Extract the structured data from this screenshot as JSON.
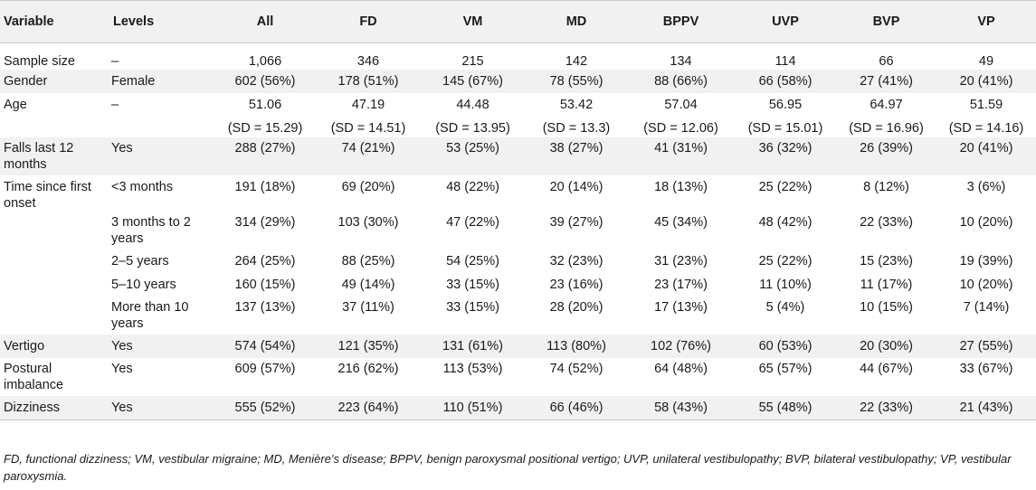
{
  "header": {
    "variable": "Variable",
    "levels": "Levels",
    "groups": [
      "All",
      "FD",
      "VM",
      "MD",
      "BPPV",
      "UVP",
      "BVP",
      "VP"
    ]
  },
  "rows": [
    {
      "variable": "Sample size",
      "level": "–",
      "values": [
        "1,066",
        "346",
        "215",
        "142",
        "134",
        "114",
        "66",
        "49"
      ]
    },
    {
      "variable": "Gender",
      "level": "Female",
      "values": [
        "602 (56%)",
        "178 (51%)",
        "145 (67%)",
        "78 (55%)",
        "88 (66%)",
        "66 (58%)",
        "27 (41%)",
        "20 (41%)"
      ]
    },
    {
      "variable": "Age",
      "level": "–",
      "values": [
        "51.06",
        "47.19",
        "44.48",
        "53.42",
        "57.04",
        "56.95",
        "64.97",
        "51.59"
      ]
    },
    {
      "variable": "",
      "level": "",
      "values": [
        "(SD = 15.29)",
        "(SD = 14.51)",
        "(SD = 13.95)",
        "(SD = 13.3)",
        "(SD = 12.06)",
        "(SD = 15.01)",
        "(SD = 16.96)",
        "(SD = 14.16)"
      ]
    },
    {
      "variable": "Falls last 12 months",
      "level": "Yes",
      "values": [
        "288 (27%)",
        "74 (21%)",
        "53 (25%)",
        "38 (27%)",
        "41 (31%)",
        "36 (32%)",
        "26 (39%)",
        "20 (41%)"
      ]
    },
    {
      "variable": "Time since first onset",
      "level": "<3 months",
      "values": [
        "191 (18%)",
        "69 (20%)",
        "48 (22%)",
        "20 (14%)",
        "18 (13%)",
        "25 (22%)",
        "8 (12%)",
        "3 (6%)"
      ]
    },
    {
      "variable": "",
      "level": "3 months to 2 years",
      "values": [
        "314 (29%)",
        "103 (30%)",
        "47 (22%)",
        "39 (27%)",
        "45 (34%)",
        "48 (42%)",
        "22 (33%)",
        "10 (20%)"
      ]
    },
    {
      "variable": "",
      "level": "2–5 years",
      "values": [
        "264 (25%)",
        "88 (25%)",
        "54 (25%)",
        "32 (23%)",
        "31 (23%)",
        "25 (22%)",
        "15 (23%)",
        "19 (39%)"
      ]
    },
    {
      "variable": "",
      "level": "5–10 years",
      "values": [
        "160 (15%)",
        "49 (14%)",
        "33 (15%)",
        "23 (16%)",
        "23 (17%)",
        "11 (10%)",
        "11 (17%)",
        "10 (20%)"
      ]
    },
    {
      "variable": "",
      "level": "More than 10 years",
      "values": [
        "137 (13%)",
        "37 (11%)",
        "33 (15%)",
        "28 (20%)",
        "17 (13%)",
        "5 (4%)",
        "10 (15%)",
        "7 (14%)"
      ]
    },
    {
      "variable": "Vertigo",
      "level": "Yes",
      "values": [
        "574 (54%)",
        "121 (35%)",
        "131 (61%)",
        "113 (80%)",
        "102 (76%)",
        "60 (53%)",
        "20 (30%)",
        "27 (55%)"
      ]
    },
    {
      "variable": "Postural imbalance",
      "level": "Yes",
      "values": [
        "609 (57%)",
        "216 (62%)",
        "113 (53%)",
        "74 (52%)",
        "64 (48%)",
        "65 (57%)",
        "44 (67%)",
        "33 (67%)"
      ]
    },
    {
      "variable": "Dizziness",
      "level": "Yes",
      "values": [
        "555 (52%)",
        "223 (64%)",
        "110 (51%)",
        "66 (46%)",
        "58 (43%)",
        "55 (48%)",
        "22 (33%)",
        "21 (43%)"
      ]
    }
  ],
  "footnote": "FD, functional dizziness; VM, vestibular migraine; MD, Menière's disease; BPPV, benign paroxysmal positional vertigo; UVP, unilateral vestibulopathy; BVP, bilateral vestibulopathy; VP, vestibular paroxysmia."
}
